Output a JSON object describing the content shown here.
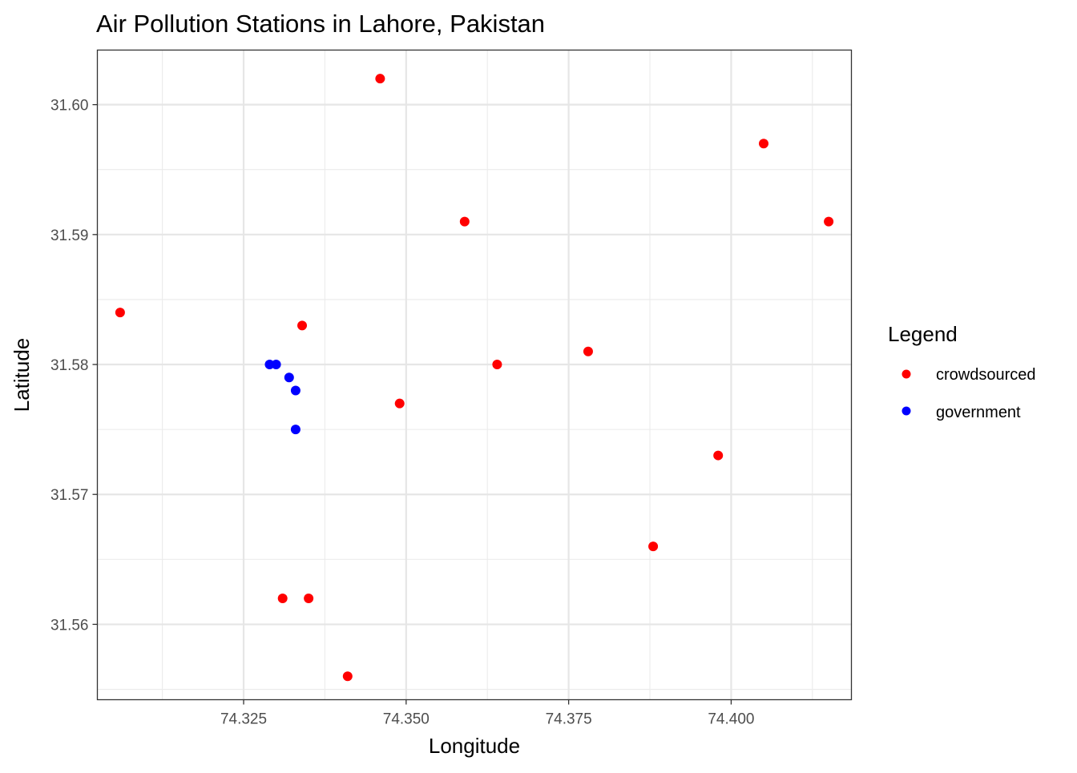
{
  "chart_data": {
    "type": "scatter",
    "title": "Air Pollution Stations in Lahore, Pakistan",
    "xlabel": "Longitude",
    "ylabel": "Latitude",
    "xlim": [
      74.3025,
      74.4185
    ],
    "ylim": [
      31.5542,
      31.6042
    ],
    "x_ticks": [
      74.325,
      74.35,
      74.375,
      74.4
    ],
    "x_tick_labels": [
      "74.325",
      "74.350",
      "74.375",
      "74.400"
    ],
    "y_ticks": [
      31.56,
      31.57,
      31.58,
      31.59,
      31.6
    ],
    "y_tick_labels": [
      "31.56",
      "31.57",
      "31.58",
      "31.59",
      "31.60"
    ],
    "grid": true,
    "legend": {
      "title": "Legend",
      "position": "right",
      "entries": [
        {
          "label": "crowdsourced",
          "color": "#ff0000"
        },
        {
          "label": "government",
          "color": "#0000ff"
        }
      ]
    },
    "series": [
      {
        "name": "crowdsourced",
        "color": "#ff0000",
        "points": [
          {
            "x": 74.346,
            "y": 31.602
          },
          {
            "x": 74.405,
            "y": 31.597
          },
          {
            "x": 74.359,
            "y": 31.591
          },
          {
            "x": 74.415,
            "y": 31.591
          },
          {
            "x": 74.306,
            "y": 31.584
          },
          {
            "x": 74.334,
            "y": 31.583
          },
          {
            "x": 74.378,
            "y": 31.581
          },
          {
            "x": 74.364,
            "y": 31.58
          },
          {
            "x": 74.349,
            "y": 31.577
          },
          {
            "x": 74.398,
            "y": 31.573
          },
          {
            "x": 74.388,
            "y": 31.566
          },
          {
            "x": 74.331,
            "y": 31.562
          },
          {
            "x": 74.335,
            "y": 31.562
          },
          {
            "x": 74.341,
            "y": 31.556
          }
        ]
      },
      {
        "name": "government",
        "color": "#0000ff",
        "points": [
          {
            "x": 74.329,
            "y": 31.58
          },
          {
            "x": 74.33,
            "y": 31.58
          },
          {
            "x": 74.332,
            "y": 31.579
          },
          {
            "x": 74.333,
            "y": 31.578
          },
          {
            "x": 74.333,
            "y": 31.575
          }
        ]
      }
    ]
  }
}
